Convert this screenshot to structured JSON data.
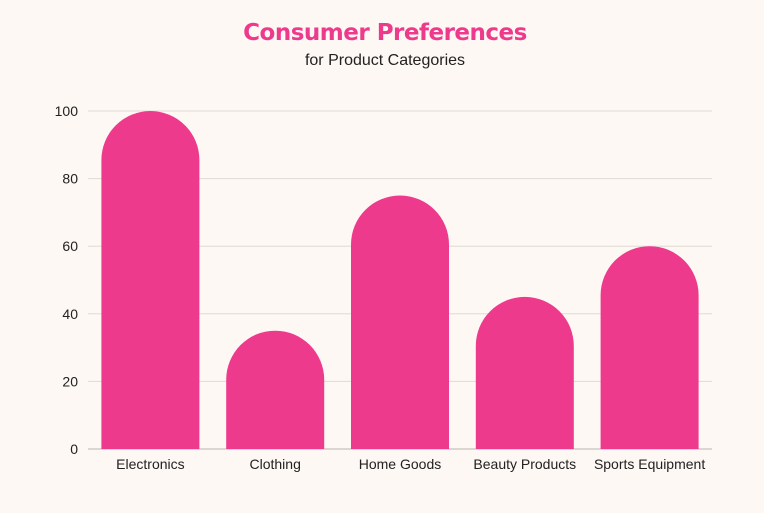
{
  "chart_data": {
    "type": "bar",
    "title": "Consumer Preferences",
    "subtitle": "for Product Categories",
    "categories": [
      "Electronics",
      "Clothing",
      "Home Goods",
      "Beauty Products",
      "Sports Equipment"
    ],
    "values": [
      100,
      35,
      75,
      45,
      60
    ],
    "xlabel": "",
    "ylabel": "",
    "ylim": [
      0,
      100
    ],
    "yticks": [
      0,
      20,
      40,
      60,
      80,
      100
    ],
    "grid": true,
    "bar_color": "#ee3a8c",
    "title_color": "#ee3a8c",
    "background": "#fdf8f3",
    "bar_style": "rounded-top"
  }
}
